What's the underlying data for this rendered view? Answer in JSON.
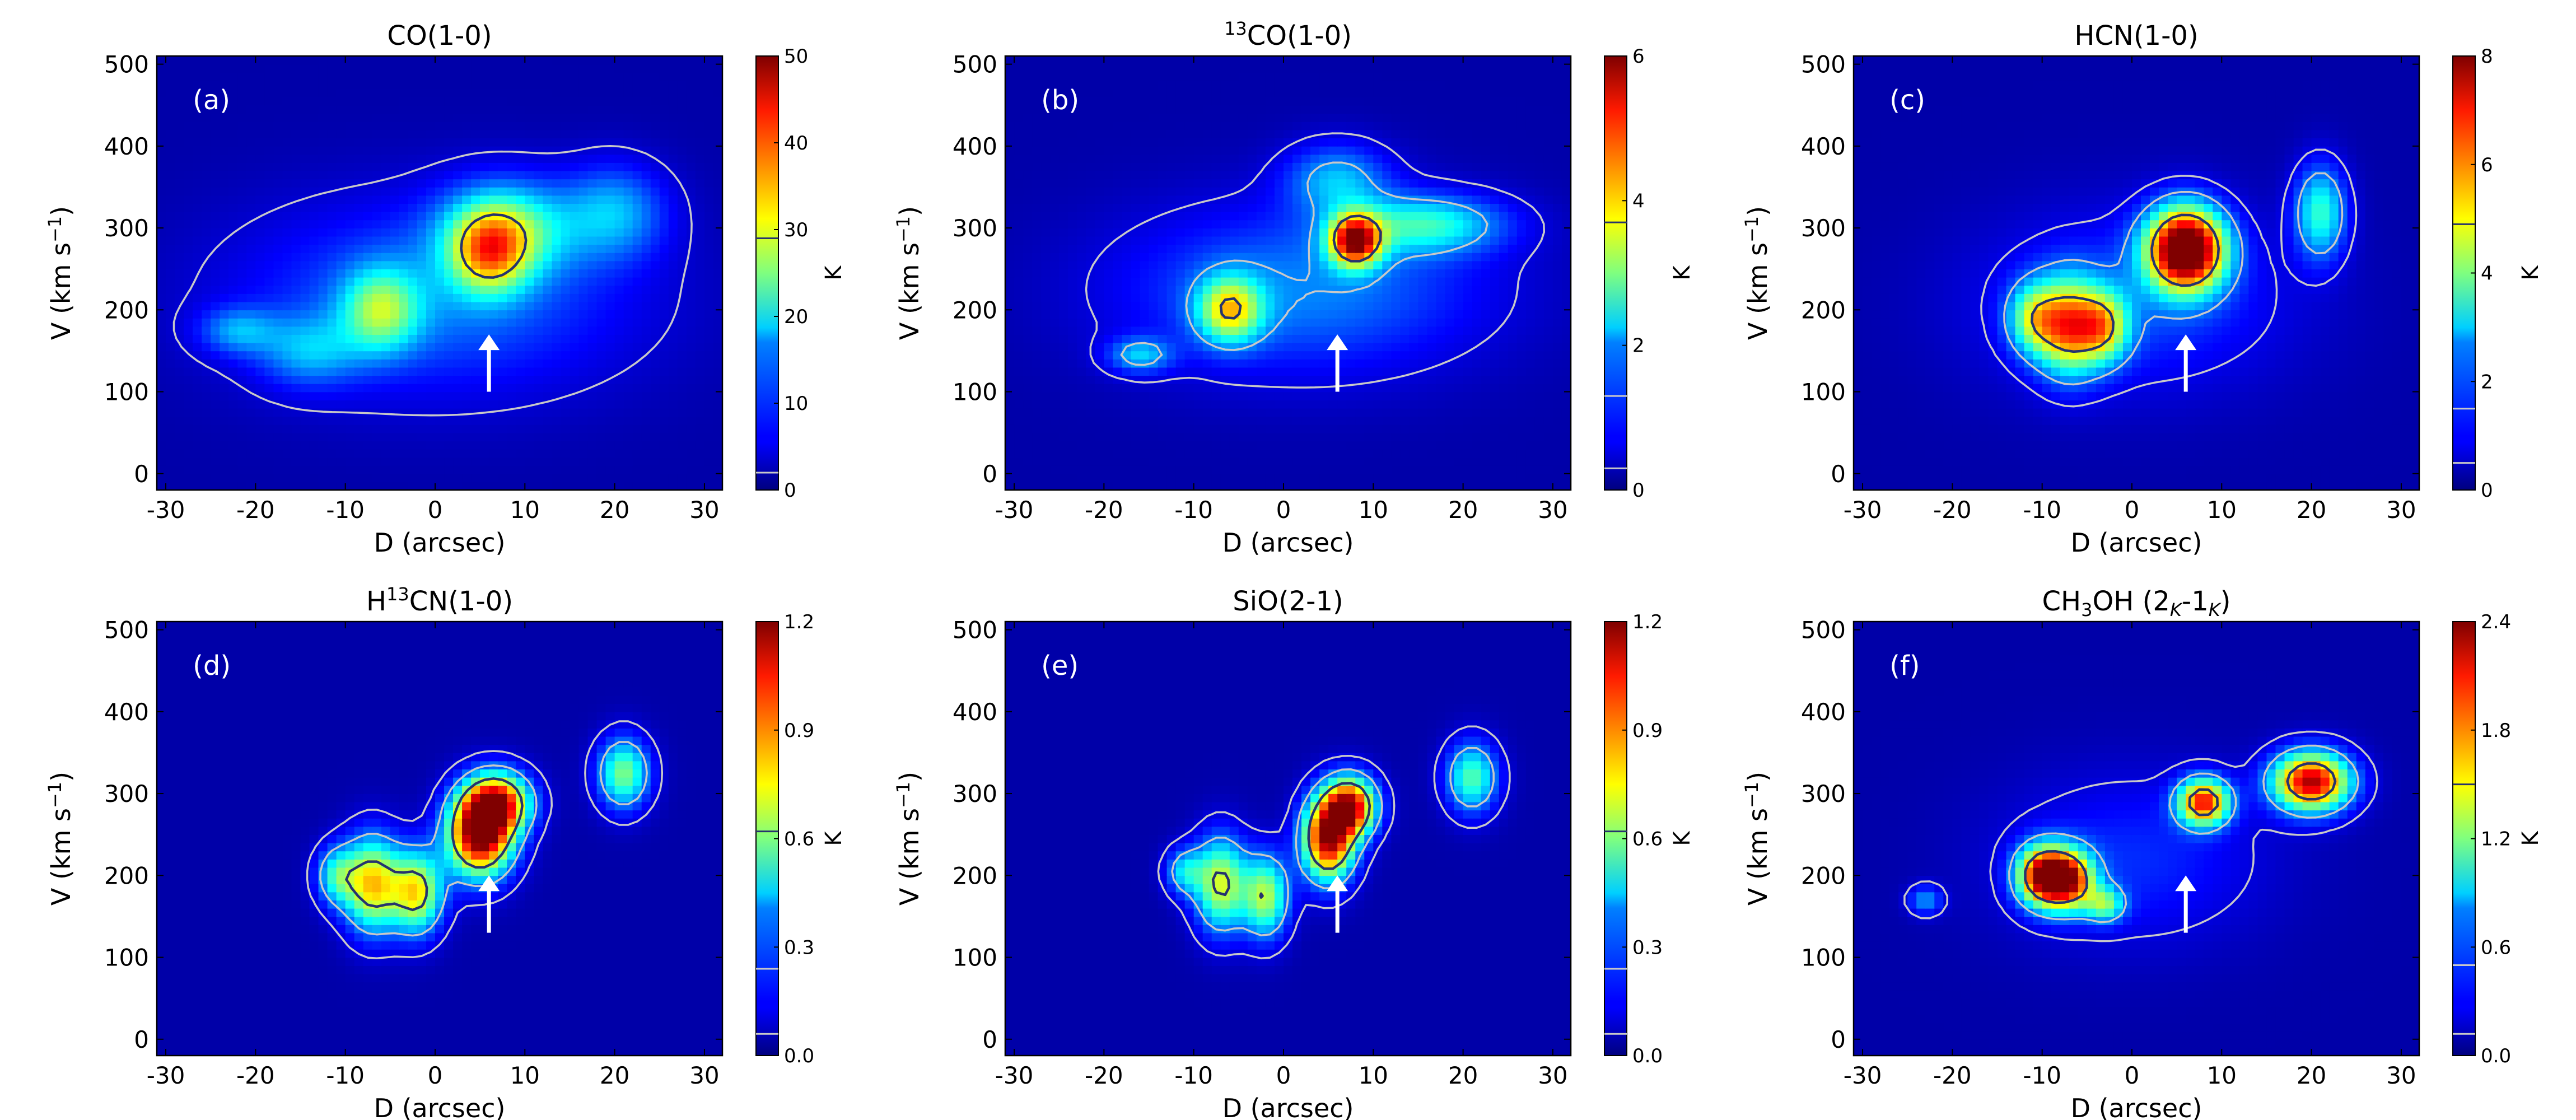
{
  "figure": {
    "xlabel": "D (arcsec)",
    "ylabel": "V (km s",
    "ylabel_sup": "−1",
    "ylabel_close": ")",
    "x_ticks": [
      -30,
      -20,
      -10,
      0,
      10,
      20,
      30
    ],
    "y_ticks": [
      0,
      100,
      200,
      300,
      400,
      500
    ],
    "xlim": [
      -31,
      32
    ],
    "ylim": [
      -20,
      510
    ],
    "cbar_label": "K",
    "colormap": "jet",
    "background_color": "#00008f",
    "contour_color_outer": "#c8c8c8",
    "contour_color_inner": "#26336e"
  },
  "chart_data": [
    {
      "type": "heatmap",
      "panel": "(a)",
      "title": "CO(1-0)",
      "title_parts": [
        {
          "t": "CO(1-0)"
        }
      ],
      "cbar_range": [
        0,
        50
      ],
      "cbar_ticks": [
        "0",
        "10",
        "20",
        "30",
        "40",
        "50"
      ],
      "cbar_contours": [
        2,
        29
      ],
      "arrow": {
        "x": 6,
        "y_tail": 100,
        "y_head": 170
      },
      "blobs": [
        {
          "x": 0,
          "y": 215,
          "sx": 15,
          "sy": 80,
          "amp": 10
        },
        {
          "x": 8,
          "y": 300,
          "sx": 5,
          "sy": 40,
          "amp": 18
        },
        {
          "x": -6,
          "y": 200,
          "sx": 3,
          "sy": 35,
          "amp": 18
        },
        {
          "x": 6,
          "y": 270,
          "sx": 3,
          "sy": 35,
          "amp": 22
        },
        {
          "x": 20,
          "y": 320,
          "sx": 4,
          "sy": 40,
          "amp": 12
        },
        {
          "x": -22,
          "y": 175,
          "sx": 3,
          "sy": 20,
          "amp": 10
        },
        {
          "x": -14,
          "y": 150,
          "sx": 4,
          "sy": 30,
          "amp": 10
        }
      ]
    },
    {
      "type": "heatmap",
      "panel": "(b)",
      "title": "13CO(1-0)",
      "title_parts": [
        {
          "t": "13",
          "sup": true
        },
        {
          "t": "CO(1-0)"
        }
      ],
      "cbar_range": [
        0,
        6
      ],
      "cbar_ticks": [
        "0",
        "2",
        "4",
        "6"
      ],
      "cbar_contours": [
        0.3,
        1.3,
        3.7
      ],
      "arrow": {
        "x": 6,
        "y_tail": 100,
        "y_head": 170
      },
      "blobs": [
        {
          "x": 2,
          "y": 225,
          "sx": 14,
          "sy": 70,
          "amp": 1.3
        },
        {
          "x": 8,
          "y": 285,
          "sx": 2,
          "sy": 22,
          "amp": 5
        },
        {
          "x": -6,
          "y": 200,
          "sx": 2.5,
          "sy": 28,
          "amp": 3
        },
        {
          "x": 16,
          "y": 305,
          "sx": 6,
          "sy": 25,
          "amp": 2
        },
        {
          "x": 6,
          "y": 360,
          "sx": 4,
          "sy": 30,
          "amp": 1.5
        },
        {
          "x": -16,
          "y": 145,
          "sx": 2.5,
          "sy": 15,
          "amp": 1.5
        }
      ]
    },
    {
      "type": "heatmap",
      "panel": "(c)",
      "title": "HCN(1-0)",
      "title_parts": [
        {
          "t": "HCN(1-0)"
        }
      ],
      "cbar_range": [
        0,
        8
      ],
      "cbar_ticks": [
        "0",
        "2",
        "4",
        "6",
        "8"
      ],
      "cbar_contours": [
        0.5,
        1.5,
        4.9
      ],
      "arrow": {
        "x": 6,
        "y_tail": 100,
        "y_head": 170
      },
      "blobs": [
        {
          "x": 0,
          "y": 210,
          "sx": 12,
          "sy": 75,
          "amp": 1.2
        },
        {
          "x": 6,
          "y": 275,
          "sx": 3,
          "sy": 35,
          "amp": 9
        },
        {
          "x": -7,
          "y": 180,
          "sx": 2.5,
          "sy": 40,
          "amp": 5
        },
        {
          "x": -3,
          "y": 180,
          "sx": 2,
          "sy": 30,
          "amp": 3.5
        },
        {
          "x": 21,
          "y": 320,
          "sx": 2,
          "sy": 40,
          "amp": 3
        },
        {
          "x": -11,
          "y": 190,
          "sx": 2,
          "sy": 30,
          "amp": 3
        }
      ]
    },
    {
      "type": "heatmap",
      "panel": "(d)",
      "title": "H13CN(1-0)",
      "title_parts": [
        {
          "t": "H"
        },
        {
          "t": "13",
          "sup": true
        },
        {
          "t": "CN(1-0)"
        }
      ],
      "cbar_range": [
        0.0,
        1.2
      ],
      "cbar_ticks": [
        "0.0",
        "0.3",
        "0.6",
        "0.9",
        "1.2"
      ],
      "cbar_contours": [
        0.06,
        0.24,
        0.62
      ],
      "arrow": {
        "x": 6,
        "y_tail": 130,
        "y_head": 200
      },
      "blobs": [
        {
          "x": 5,
          "y": 250,
          "sx": 2.5,
          "sy": 35,
          "amp": 1.2
        },
        {
          "x": 7,
          "y": 290,
          "sx": 2.5,
          "sy": 25,
          "amp": 0.9
        },
        {
          "x": -7,
          "y": 190,
          "sx": 2.2,
          "sy": 40,
          "amp": 0.75
        },
        {
          "x": -2,
          "y": 180,
          "sx": 2,
          "sy": 35,
          "amp": 0.7
        },
        {
          "x": -11,
          "y": 200,
          "sx": 1.6,
          "sy": 25,
          "amp": 0.4
        },
        {
          "x": 21,
          "y": 325,
          "sx": 2,
          "sy": 30,
          "amp": 0.55
        }
      ]
    },
    {
      "type": "heatmap",
      "panel": "(e)",
      "title": "SiO(2-1)",
      "title_parts": [
        {
          "t": "SiO(2-1)"
        }
      ],
      "cbar_range": [
        0.0,
        1.2
      ],
      "cbar_ticks": [
        "0.0",
        "0.3",
        "0.6",
        "0.9",
        "1.2"
      ],
      "cbar_contours": [
        0.06,
        0.24,
        0.62
      ],
      "arrow": {
        "x": 6,
        "y_tail": 130,
        "y_head": 200
      },
      "blobs": [
        {
          "x": 5,
          "y": 245,
          "sx": 2,
          "sy": 35,
          "amp": 1.1
        },
        {
          "x": 7.5,
          "y": 285,
          "sx": 2,
          "sy": 25,
          "amp": 1.0
        },
        {
          "x": -7,
          "y": 190,
          "sx": 2,
          "sy": 40,
          "amp": 0.65
        },
        {
          "x": -2,
          "y": 175,
          "sx": 1.8,
          "sy": 35,
          "amp": 0.6
        },
        {
          "x": -11,
          "y": 205,
          "sx": 1.5,
          "sy": 20,
          "amp": 0.35
        },
        {
          "x": 21,
          "y": 320,
          "sx": 2,
          "sy": 30,
          "amp": 0.5
        }
      ]
    },
    {
      "type": "heatmap",
      "panel": "(f)",
      "title": "CH3OH (2K-1K)",
      "title_parts": [
        {
          "t": "CH"
        },
        {
          "t": "3",
          "sub": true
        },
        {
          "t": "OH (2"
        },
        {
          "t": "K",
          "sub": true,
          "it": true
        },
        {
          "t": "-1"
        },
        {
          "t": "K",
          "sub": true,
          "it": true
        },
        {
          "t": ")"
        }
      ],
      "cbar_range": [
        0.0,
        2.4
      ],
      "cbar_ticks": [
        "0.0",
        "0.6",
        "1.2",
        "1.8",
        "2.4"
      ],
      "cbar_contours": [
        0.12,
        0.5,
        1.5
      ],
      "arrow": {
        "x": 6,
        "y_tail": 130,
        "y_head": 200
      },
      "blobs": [
        {
          "x": -10,
          "y": 200,
          "sx": 2,
          "sy": 25,
          "amp": 2
        },
        {
          "x": -7,
          "y": 195,
          "sx": 2,
          "sy": 25,
          "amp": 1.8
        },
        {
          "x": 8,
          "y": 290,
          "sx": 2,
          "sy": 20,
          "amp": 1.9
        },
        {
          "x": 20,
          "y": 315,
          "sx": 3,
          "sy": 25,
          "amp": 2.2
        },
        {
          "x": -3,
          "y": 165,
          "sx": 1.5,
          "sy": 15,
          "amp": 0.9
        },
        {
          "x": -23,
          "y": 170,
          "sx": 1.3,
          "sy": 12,
          "amp": 0.55
        },
        {
          "x": 0,
          "y": 220,
          "sx": 10,
          "sy": 70,
          "amp": 0.3
        }
      ]
    }
  ]
}
